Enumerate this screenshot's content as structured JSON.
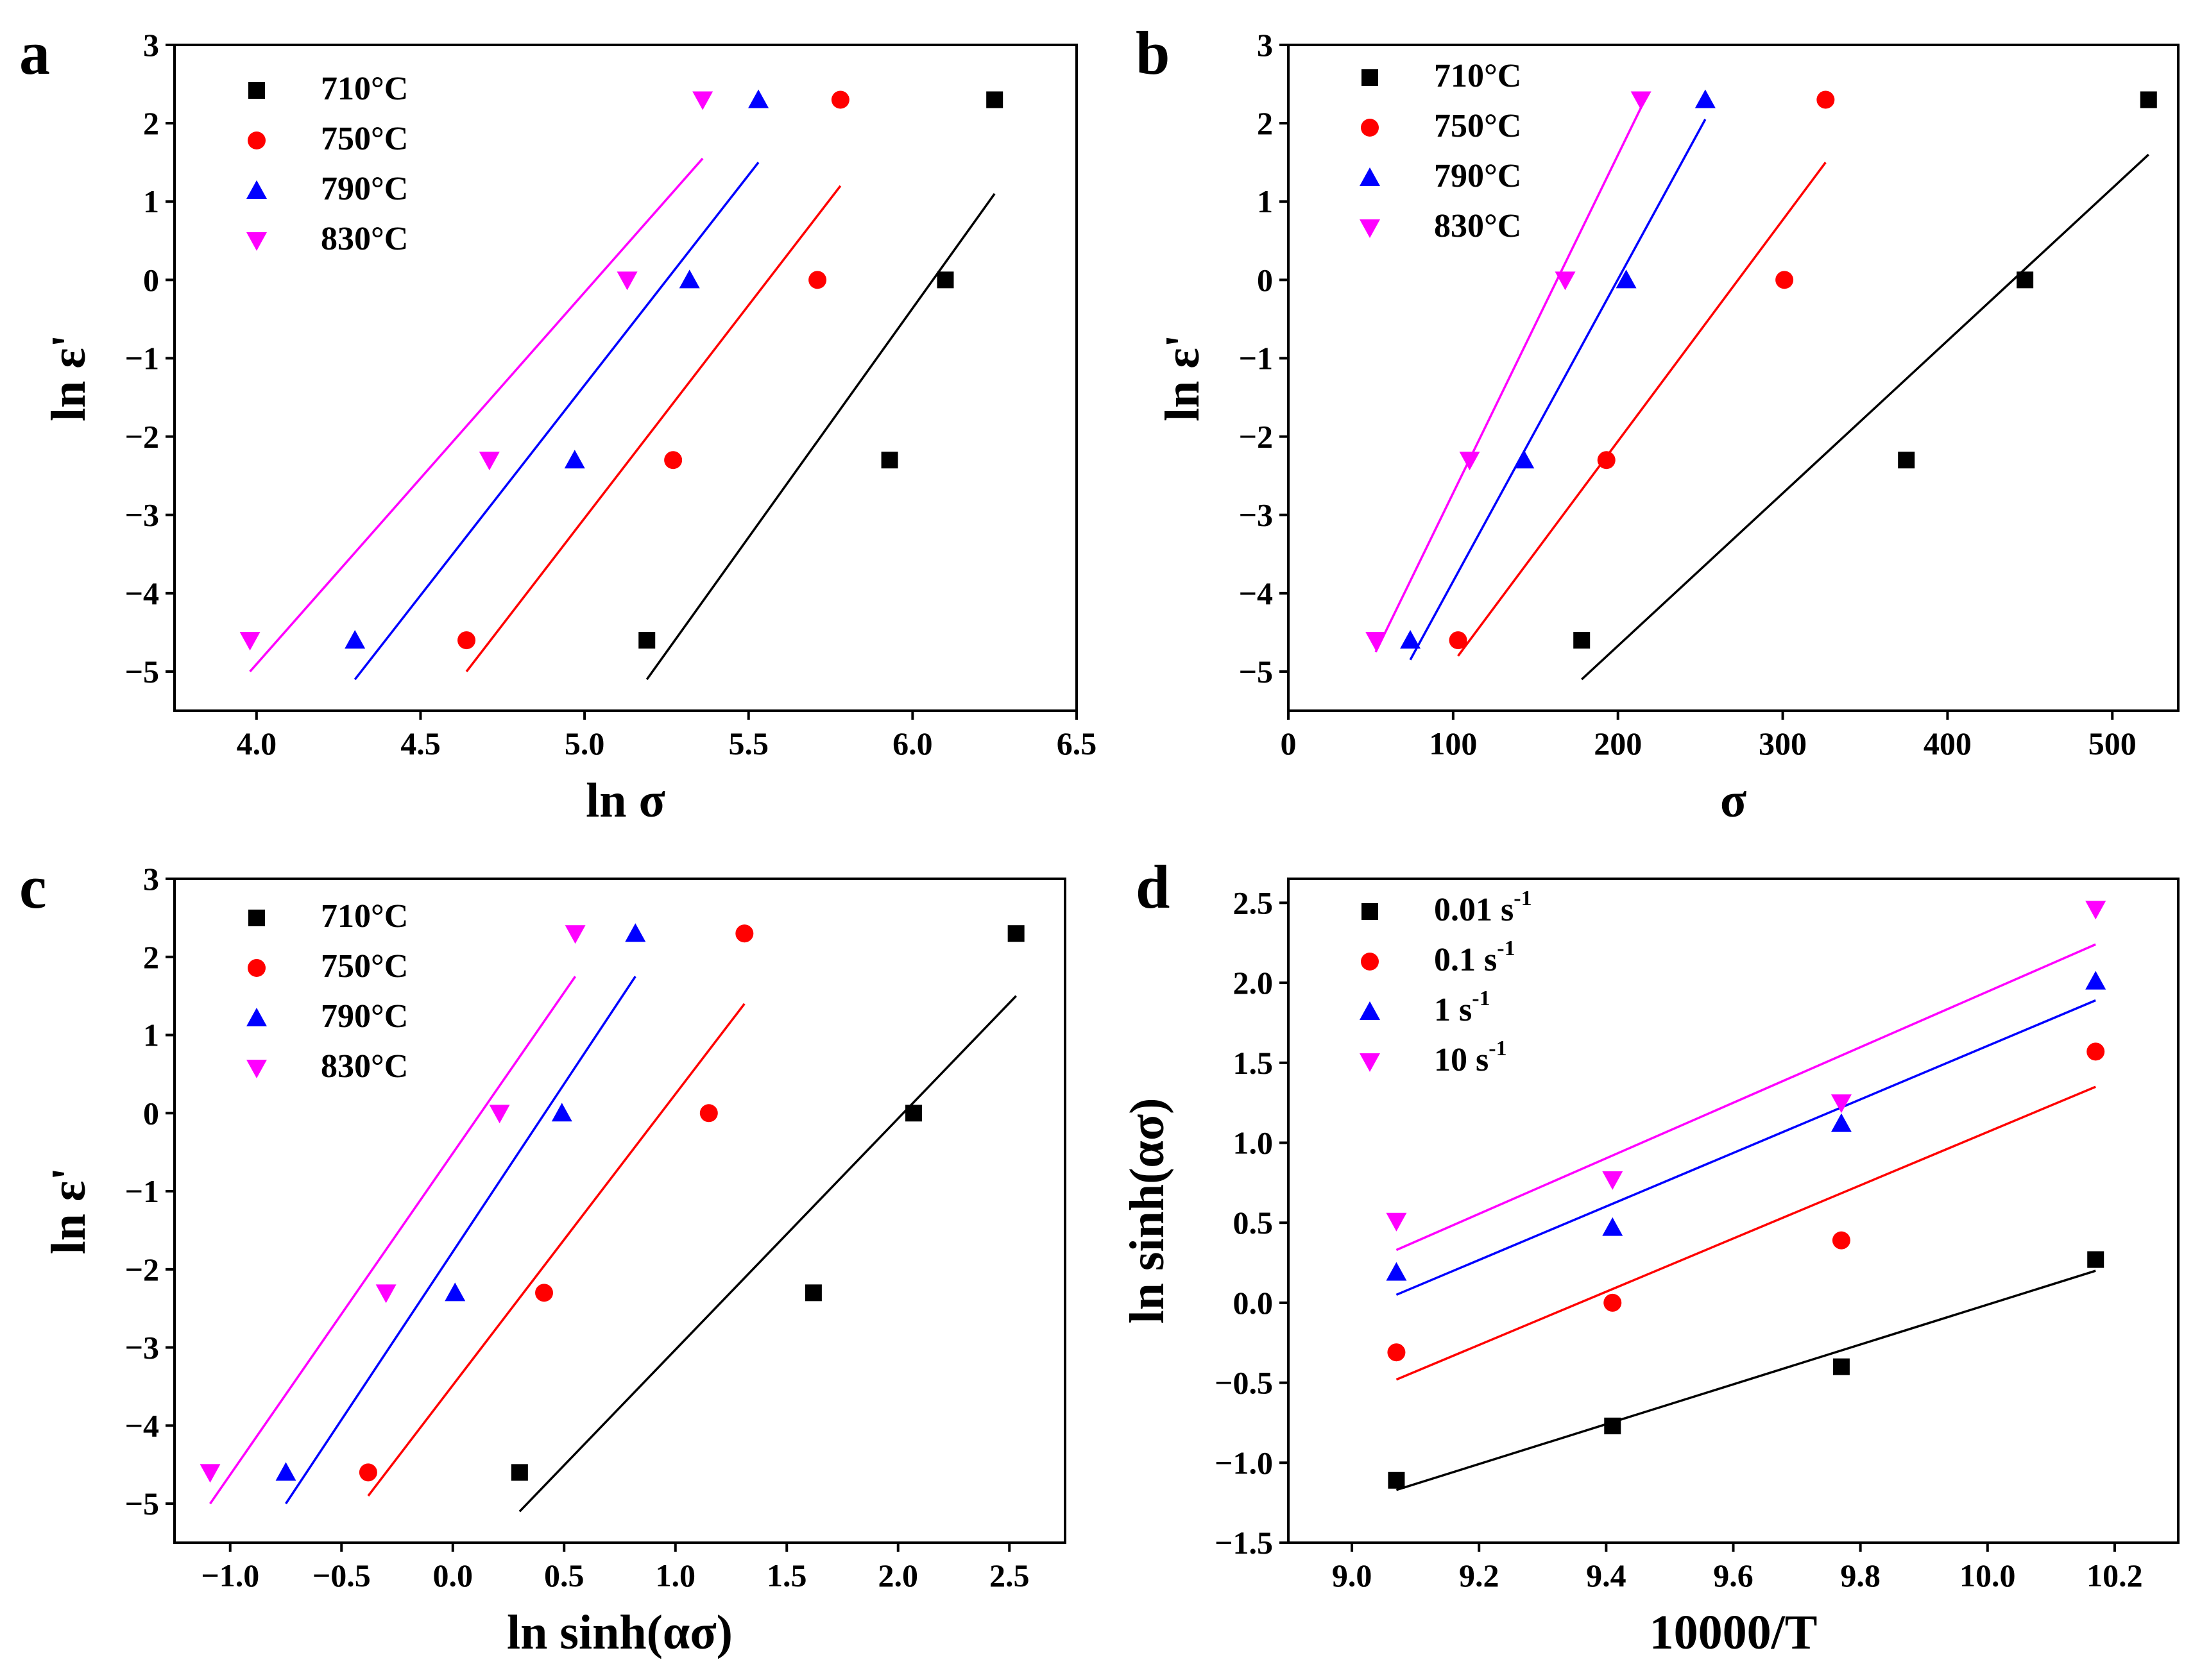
{
  "chart_data": [
    {
      "type": "scatter",
      "panel_label": "a",
      "xlabel": "ln σ",
      "ylabel": "ln ε'",
      "xlim": [
        3.75,
        6.5
      ],
      "ylim": [
        -5.5,
        3
      ],
      "xticks": [
        4.0,
        4.5,
        5.0,
        5.5,
        6.0,
        6.5
      ],
      "xtick_labels": [
        "4.0",
        "4.5",
        "5.0",
        "5.5",
        "6.0",
        "6.5"
      ],
      "yticks": [
        -5,
        -4,
        -3,
        -2,
        -1,
        0,
        1,
        2,
        3
      ],
      "ytick_labels": [
        "−5",
        "−4",
        "−3",
        "−2",
        "−1",
        "0",
        "1",
        "2",
        "3"
      ],
      "legend_position": "top-left",
      "series": [
        {
          "name": "710°C",
          "color": "#000000",
          "marker": "square",
          "points": [
            [
              5.19,
              -4.6
            ],
            [
              5.93,
              -2.3
            ],
            [
              6.1,
              0.0
            ],
            [
              6.25,
              2.3
            ]
          ],
          "fit": [
            [
              5.19,
              -5.1
            ],
            [
              6.25,
              1.1
            ]
          ]
        },
        {
          "name": "750°C",
          "color": "#ff0000",
          "marker": "circle",
          "points": [
            [
              4.64,
              -4.6
            ],
            [
              5.27,
              -2.3
            ],
            [
              5.71,
              0.0
            ],
            [
              5.78,
              2.3
            ]
          ],
          "fit": [
            [
              4.64,
              -5.0
            ],
            [
              5.78,
              1.2
            ]
          ]
        },
        {
          "name": "790°C",
          "color": "#0000ff",
          "marker": "triangle-up",
          "points": [
            [
              4.3,
              -4.6
            ],
            [
              4.97,
              -2.3
            ],
            [
              5.32,
              0.0
            ],
            [
              5.53,
              2.3
            ]
          ],
          "fit": [
            [
              4.3,
              -5.1
            ],
            [
              5.53,
              1.5
            ]
          ]
        },
        {
          "name": "830°C",
          "color": "#ff00ff",
          "marker": "triangle-down",
          "points": [
            [
              3.98,
              -4.6
            ],
            [
              4.71,
              -2.3
            ],
            [
              5.13,
              0.0
            ],
            [
              5.36,
              2.3
            ]
          ],
          "fit": [
            [
              3.98,
              -5.0
            ],
            [
              5.36,
              1.55
            ]
          ]
        }
      ]
    },
    {
      "type": "scatter",
      "panel_label": "b",
      "xlabel": "σ",
      "ylabel": "ln ε'",
      "xlim": [
        0,
        540
      ],
      "ylim": [
        -5.5,
        3
      ],
      "xticks": [
        0,
        100,
        200,
        300,
        400,
        500
      ],
      "xtick_labels": [
        "0",
        "100",
        "200",
        "300",
        "400",
        "500"
      ],
      "yticks": [
        -5,
        -4,
        -3,
        -2,
        -1,
        0,
        1,
        2,
        3
      ],
      "ytick_labels": [
        "−5",
        "−4",
        "−3",
        "−2",
        "−1",
        "0",
        "1",
        "2",
        "3"
      ],
      "legend_position": "top-left",
      "series": [
        {
          "name": "710°C",
          "color": "#000000",
          "marker": "square",
          "points": [
            [
              178,
              -4.6
            ],
            [
              375,
              -2.3
            ],
            [
              447,
              0.0
            ],
            [
              522,
              2.3
            ]
          ],
          "fit": [
            [
              178,
              -5.1
            ],
            [
              522,
              1.6
            ]
          ]
        },
        {
          "name": "750°C",
          "color": "#ff0000",
          "marker": "circle",
          "points": [
            [
              103,
              -4.6
            ],
            [
              193,
              -2.3
            ],
            [
              301,
              0.0
            ],
            [
              326,
              2.3
            ]
          ],
          "fit": [
            [
              103,
              -4.8
            ],
            [
              326,
              1.5
            ]
          ]
        },
        {
          "name": "790°C",
          "color": "#0000ff",
          "marker": "triangle-up",
          "points": [
            [
              74,
              -4.6
            ],
            [
              143,
              -2.3
            ],
            [
              205,
              0.0
            ],
            [
              253,
              2.3
            ]
          ],
          "fit": [
            [
              74,
              -4.85
            ],
            [
              253,
              2.05
            ]
          ]
        },
        {
          "name": "830°C",
          "color": "#ff00ff",
          "marker": "triangle-down",
          "points": [
            [
              53,
              -4.6
            ],
            [
              110,
              -2.3
            ],
            [
              168,
              0.0
            ],
            [
              214,
              2.3
            ]
          ],
          "fit": [
            [
              53,
              -4.75
            ],
            [
              214,
              2.2
            ]
          ]
        }
      ]
    },
    {
      "type": "scatter",
      "panel_label": "c",
      "xlabel": "ln sinh(ασ)",
      "ylabel": "ln ε'",
      "xlim": [
        -1.25,
        2.75
      ],
      "ylim": [
        -5.5,
        3
      ],
      "xticks": [
        -1.0,
        -0.5,
        0.0,
        0.5,
        1.0,
        1.5,
        2.0,
        2.5
      ],
      "xtick_labels": [
        "−1.0",
        "−0.5",
        "0.0",
        "0.5",
        "1.0",
        "1.5",
        "2.0",
        "2.5"
      ],
      "yticks": [
        -5,
        -4,
        -3,
        -2,
        -1,
        0,
        1,
        2,
        3
      ],
      "ytick_labels": [
        "−5",
        "−4",
        "−3",
        "−2",
        "−1",
        "0",
        "1",
        "2",
        "3"
      ],
      "legend_position": "top-left",
      "series": [
        {
          "name": "710°C",
          "color": "#000000",
          "marker": "square",
          "points": [
            [
              0.3,
              -4.6
            ],
            [
              1.62,
              -2.3
            ],
            [
              2.07,
              0.0
            ],
            [
              2.53,
              2.3
            ]
          ],
          "fit": [
            [
              0.3,
              -5.1
            ],
            [
              2.53,
              1.5
            ]
          ]
        },
        {
          "name": "750°C",
          "color": "#ff0000",
          "marker": "circle",
          "points": [
            [
              -0.38,
              -4.6
            ],
            [
              0.41,
              -2.3
            ],
            [
              1.15,
              0.0
            ],
            [
              1.31,
              2.3
            ]
          ],
          "fit": [
            [
              -0.38,
              -4.9
            ],
            [
              1.31,
              1.4
            ]
          ]
        },
        {
          "name": "790°C",
          "color": "#0000ff",
          "marker": "triangle-up",
          "points": [
            [
              -0.75,
              -4.6
            ],
            [
              0.01,
              -2.3
            ],
            [
              0.49,
              0.0
            ],
            [
              0.82,
              2.3
            ]
          ],
          "fit": [
            [
              -0.75,
              -5.0
            ],
            [
              0.82,
              1.75
            ]
          ]
        },
        {
          "name": "830°C",
          "color": "#ff00ff",
          "marker": "triangle-down",
          "points": [
            [
              -1.09,
              -4.6
            ],
            [
              -0.3,
              -2.3
            ],
            [
              0.21,
              0.0
            ],
            [
              0.55,
              2.3
            ]
          ],
          "fit": [
            [
              -1.09,
              -5.0
            ],
            [
              0.55,
              1.75
            ]
          ]
        }
      ]
    },
    {
      "type": "scatter",
      "panel_label": "d",
      "xlabel": "10000/T",
      "ylabel": "ln sinh(ασ)",
      "xlim": [
        8.9,
        10.3
      ],
      "ylim": [
        -1.5,
        2.65
      ],
      "xticks": [
        9.0,
        9.2,
        9.4,
        9.6,
        9.8,
        10.0,
        10.2
      ],
      "xtick_labels": [
        "9.0",
        "9.2",
        "9.4",
        "9.6",
        "9.8",
        "10.0",
        "10.2"
      ],
      "yticks": [
        -1.5,
        -1.0,
        -0.5,
        0.0,
        0.5,
        1.0,
        1.5,
        2.0,
        2.5
      ],
      "ytick_labels": [
        "−1.5",
        "−1.0",
        "−0.5",
        "0.0",
        "0.5",
        "1.0",
        "1.5",
        "2.0",
        "2.5"
      ],
      "legend_position": "top-left",
      "series": [
        {
          "name": "0.01 s",
          "name_sup": "-1",
          "color": "#000000",
          "marker": "square",
          "points": [
            [
              9.07,
              -1.11
            ],
            [
              9.41,
              -0.77
            ],
            [
              9.77,
              -0.4
            ],
            [
              10.17,
              0.27
            ]
          ],
          "fit": [
            [
              9.07,
              -1.17
            ],
            [
              10.17,
              0.2
            ]
          ]
        },
        {
          "name": "0.1 s",
          "name_sup": "-1",
          "color": "#ff0000",
          "marker": "circle",
          "points": [
            [
              9.07,
              -0.31
            ],
            [
              9.41,
              0.0
            ],
            [
              9.77,
              0.39
            ],
            [
              10.17,
              1.57
            ]
          ],
          "fit": [
            [
              9.07,
              -0.48
            ],
            [
              10.17,
              1.35
            ]
          ]
        },
        {
          "name": "1 s",
          "name_sup": "-1",
          "color": "#0000ff",
          "marker": "triangle-up",
          "points": [
            [
              9.07,
              0.19
            ],
            [
              9.41,
              0.47
            ],
            [
              9.77,
              1.12
            ],
            [
              10.17,
              2.01
            ]
          ],
          "fit": [
            [
              9.07,
              0.05
            ],
            [
              10.17,
              1.89
            ]
          ]
        },
        {
          "name": "10 s",
          "name_sup": "-1",
          "color": "#ff00ff",
          "marker": "triangle-down",
          "points": [
            [
              9.07,
              0.51
            ],
            [
              9.41,
              0.77
            ],
            [
              9.77,
              1.25
            ],
            [
              10.17,
              2.46
            ]
          ],
          "fit": [
            [
              9.07,
              0.33
            ],
            [
              10.17,
              2.24
            ]
          ]
        }
      ]
    }
  ]
}
